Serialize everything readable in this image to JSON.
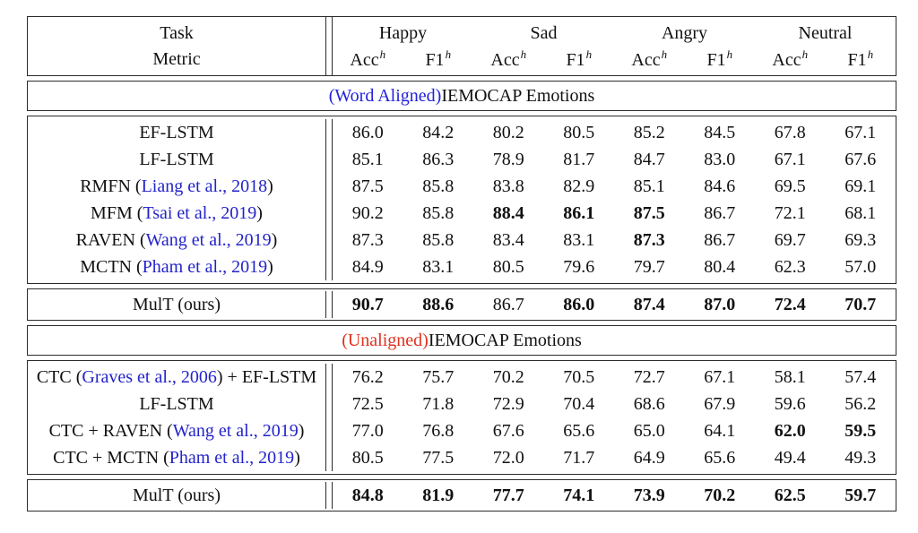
{
  "colors": {
    "citation_blue": "#2323cb",
    "aligned_blue": "#2121dd",
    "unaligned_red": "#e0301e",
    "border": "#2b2b2b",
    "text": "#111111"
  },
  "header": {
    "task_label": "Task",
    "metric_label": "Metric",
    "groups": [
      "Happy",
      "Sad",
      "Angry",
      "Neutral"
    ],
    "metric_bases": [
      "Acc",
      "F1"
    ],
    "metric_sup": "h"
  },
  "sections": [
    {
      "title": {
        "colored": "(Word Aligned)",
        "color_key": "aligned_blue",
        "rest": " IEMOCAP Emotions"
      },
      "rows": [
        {
          "label": [
            {
              "t": "EF-LSTM"
            }
          ],
          "values": [
            [
              "86.0",
              0
            ],
            [
              "84.2",
              0
            ],
            [
              "80.2",
              0
            ],
            [
              "80.5",
              0
            ],
            [
              "85.2",
              0
            ],
            [
              "84.5",
              0
            ],
            [
              "67.8",
              0
            ],
            [
              "67.1",
              0
            ]
          ]
        },
        {
          "label": [
            {
              "t": "LF-LSTM"
            }
          ],
          "values": [
            [
              "85.1",
              0
            ],
            [
              "86.3",
              0
            ],
            [
              "78.9",
              0
            ],
            [
              "81.7",
              0
            ],
            [
              "84.7",
              0
            ],
            [
              "83.0",
              0
            ],
            [
              "67.1",
              0
            ],
            [
              "67.6",
              0
            ]
          ]
        },
        {
          "label": [
            {
              "t": "RMFN ("
            },
            {
              "t": "Liang et al., 2018",
              "blue": true
            },
            {
              "t": ")"
            }
          ],
          "values": [
            [
              "87.5",
              0
            ],
            [
              "85.8",
              0
            ],
            [
              "83.8",
              0
            ],
            [
              "82.9",
              0
            ],
            [
              "85.1",
              0
            ],
            [
              "84.6",
              0
            ],
            [
              "69.5",
              0
            ],
            [
              "69.1",
              0
            ]
          ]
        },
        {
          "label": [
            {
              "t": "MFM ("
            },
            {
              "t": "Tsai et al., 2019",
              "blue": true
            },
            {
              "t": ")"
            }
          ],
          "values": [
            [
              "90.2",
              0
            ],
            [
              "85.8",
              0
            ],
            [
              "88.4",
              1
            ],
            [
              "86.1",
              1
            ],
            [
              "87.5",
              1
            ],
            [
              "86.7",
              0
            ],
            [
              "72.1",
              0
            ],
            [
              "68.1",
              0
            ]
          ]
        },
        {
          "label": [
            {
              "t": "RAVEN ("
            },
            {
              "t": "Wang et al., 2019",
              "blue": true
            },
            {
              "t": ")"
            }
          ],
          "values": [
            [
              "87.3",
              0
            ],
            [
              "85.8",
              0
            ],
            [
              "83.4",
              0
            ],
            [
              "83.1",
              0
            ],
            [
              "87.3",
              1
            ],
            [
              "86.7",
              0
            ],
            [
              "69.7",
              0
            ],
            [
              "69.3",
              0
            ]
          ]
        },
        {
          "label": [
            {
              "t": "MCTN ("
            },
            {
              "t": "Pham et al., 2019",
              "blue": true
            },
            {
              "t": ")"
            }
          ],
          "values": [
            [
              "84.9",
              0
            ],
            [
              "83.1",
              0
            ],
            [
              "80.5",
              0
            ],
            [
              "79.6",
              0
            ],
            [
              "79.7",
              0
            ],
            [
              "80.4",
              0
            ],
            [
              "62.3",
              0
            ],
            [
              "57.0",
              0
            ]
          ]
        }
      ],
      "summary": {
        "label": [
          {
            "t": "MulT (ours)"
          }
        ],
        "values": [
          [
            "90.7",
            1
          ],
          [
            "88.6",
            1
          ],
          [
            "86.7",
            0
          ],
          [
            "86.0",
            1
          ],
          [
            "87.4",
            1
          ],
          [
            "87.0",
            1
          ],
          [
            "72.4",
            1
          ],
          [
            "70.7",
            1
          ]
        ]
      }
    },
    {
      "title": {
        "colored": "(Unaligned)",
        "color_key": "unaligned_red",
        "rest": " IEMOCAP Emotions"
      },
      "rows": [
        {
          "label": [
            {
              "t": "CTC ("
            },
            {
              "t": "Graves et al., 2006",
              "blue": true
            },
            {
              "t": ") + EF-LSTM"
            }
          ],
          "values": [
            [
              "76.2",
              0
            ],
            [
              "75.7",
              0
            ],
            [
              "70.2",
              0
            ],
            [
              "70.5",
              0
            ],
            [
              "72.7",
              0
            ],
            [
              "67.1",
              0
            ],
            [
              "58.1",
              0
            ],
            [
              "57.4",
              0
            ]
          ]
        },
        {
          "label": [
            {
              "t": "LF-LSTM"
            }
          ],
          "values": [
            [
              "72.5",
              0
            ],
            [
              "71.8",
              0
            ],
            [
              "72.9",
              0
            ],
            [
              "70.4",
              0
            ],
            [
              "68.6",
              0
            ],
            [
              "67.9",
              0
            ],
            [
              "59.6",
              0
            ],
            [
              "56.2",
              0
            ]
          ]
        },
        {
          "label": [
            {
              "t": "CTC + RAVEN ("
            },
            {
              "t": "Wang et al., 2019",
              "blue": true
            },
            {
              "t": ")"
            }
          ],
          "values": [
            [
              "77.0",
              0
            ],
            [
              "76.8",
              0
            ],
            [
              "67.6",
              0
            ],
            [
              "65.6",
              0
            ],
            [
              "65.0",
              0
            ],
            [
              "64.1",
              0
            ],
            [
              "62.0",
              1
            ],
            [
              "59.5",
              1
            ]
          ]
        },
        {
          "label": [
            {
              "t": "CTC + MCTN ("
            },
            {
              "t": "Pham et al., 2019",
              "blue": true
            },
            {
              "t": ")"
            }
          ],
          "values": [
            [
              "80.5",
              0
            ],
            [
              "77.5",
              0
            ],
            [
              "72.0",
              0
            ],
            [
              "71.7",
              0
            ],
            [
              "64.9",
              0
            ],
            [
              "65.6",
              0
            ],
            [
              "49.4",
              0
            ],
            [
              "49.3",
              0
            ]
          ]
        }
      ],
      "summary": {
        "label": [
          {
            "t": "MulT (ours)"
          }
        ],
        "values": [
          [
            "84.8",
            1
          ],
          [
            "81.9",
            1
          ],
          [
            "77.7",
            1
          ],
          [
            "74.1",
            1
          ],
          [
            "73.9",
            1
          ],
          [
            "70.2",
            1
          ],
          [
            "62.5",
            1
          ],
          [
            "59.7",
            1
          ]
        ]
      }
    }
  ]
}
